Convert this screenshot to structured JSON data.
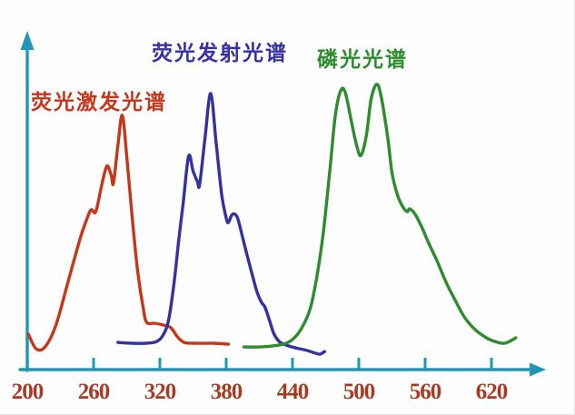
{
  "chart_data": {
    "type": "line",
    "title": "",
    "xlabel": "",
    "ylabel": "",
    "x_ticks": [
      200,
      260,
      320,
      380,
      440,
      500,
      560,
      620
    ],
    "x_range": [
      200,
      660
    ],
    "y_range": [
      0,
      100
    ],
    "grid": false,
    "legend_position": "labels-above-curves",
    "series": [
      {
        "name": "荧光激发光谱",
        "color": "#c5371a",
        "points": [
          [
            201,
            12.4
          ],
          [
            208,
            7.3
          ],
          [
            216,
            7.9
          ],
          [
            226,
            15.6
          ],
          [
            237,
            30.8
          ],
          [
            248,
            46.0
          ],
          [
            255,
            53.7
          ],
          [
            258,
            55.9
          ],
          [
            262,
            55.2
          ],
          [
            267,
            63.8
          ],
          [
            272,
            71.1
          ],
          [
            276,
            67.9
          ],
          [
            278,
            65.1
          ],
          [
            282,
            78.4
          ],
          [
            286,
            88.9
          ],
          [
            290,
            74.6
          ],
          [
            295,
            53.0
          ],
          [
            300,
            34.0
          ],
          [
            305,
            21.3
          ],
          [
            308,
            16.5
          ],
          [
            315,
            16.2
          ],
          [
            323,
            15.6
          ],
          [
            330,
            14.6
          ],
          [
            336,
            11.4
          ],
          [
            342,
            9.5
          ],
          [
            352,
            9.2
          ],
          [
            369,
            9.2
          ],
          [
            382,
            8.9
          ]
        ]
      },
      {
        "name": "荧光发射光谱",
        "color": "#3531a3",
        "points": [
          [
            282,
            9.5
          ],
          [
            295,
            9.2
          ],
          [
            307,
            9.2
          ],
          [
            317,
            9.8
          ],
          [
            323,
            12.1
          ],
          [
            328,
            17.5
          ],
          [
            333,
            30.8
          ],
          [
            337,
            45.1
          ],
          [
            341,
            57.8
          ],
          [
            346,
            74.6
          ],
          [
            350,
            69.5
          ],
          [
            354,
            65.7
          ],
          [
            356,
            64.8
          ],
          [
            361,
            81.6
          ],
          [
            366,
            96.5
          ],
          [
            371,
            79.0
          ],
          [
            376,
            61.0
          ],
          [
            380,
            53.0
          ],
          [
            382,
            51.4
          ],
          [
            385,
            54.0
          ],
          [
            388,
            54.3
          ],
          [
            391,
            52.1
          ],
          [
            397,
            42.9
          ],
          [
            403,
            34.0
          ],
          [
            408,
            27.0
          ],
          [
            412,
            23.5
          ],
          [
            415,
            21.9
          ],
          [
            419,
            17.5
          ],
          [
            423,
            12.7
          ],
          [
            428,
            9.8
          ],
          [
            434,
            8.6
          ],
          [
            443,
            7.6
          ],
          [
            453,
            6.7
          ],
          [
            461,
            5.7
          ],
          [
            465,
            5.4
          ],
          [
            469,
            6.3
          ]
        ]
      },
      {
        "name": "磷光光谱",
        "color": "#2e8b2e",
        "points": [
          [
            396,
            7.9
          ],
          [
            410,
            7.9
          ],
          [
            422,
            8.3
          ],
          [
            432,
            8.9
          ],
          [
            440,
            10.5
          ],
          [
            448,
            14.3
          ],
          [
            456,
            21.3
          ],
          [
            462,
            32.4
          ],
          [
            468,
            48.3
          ],
          [
            474,
            70.5
          ],
          [
            479,
            89.5
          ],
          [
            484,
            97.8
          ],
          [
            488,
            96.5
          ],
          [
            493,
            87.3
          ],
          [
            498,
            78.4
          ],
          [
            502,
            74.9
          ],
          [
            507,
            82.2
          ],
          [
            511,
            94.3
          ],
          [
            516,
            99.7
          ],
          [
            520,
            95.9
          ],
          [
            526,
            81.6
          ],
          [
            530,
            68.9
          ],
          [
            535,
            61.0
          ],
          [
            540,
            56.8
          ],
          [
            544,
            55.2
          ],
          [
            546,
            56.2
          ],
          [
            551,
            54.3
          ],
          [
            557,
            49.8
          ],
          [
            563,
            44.4
          ],
          [
            571,
            37.8
          ],
          [
            579,
            30.5
          ],
          [
            587,
            24.4
          ],
          [
            596,
            18.1
          ],
          [
            606,
            13.7
          ],
          [
            617,
            10.8
          ],
          [
            626,
            9.5
          ],
          [
            632,
            9.2
          ],
          [
            638,
            10.2
          ],
          [
            642,
            11.1
          ]
        ]
      }
    ]
  },
  "labels": {
    "excitation": "荧光激发光谱",
    "emission": "荧光发射光谱",
    "phosphorescence": "磷光光谱"
  },
  "colors": {
    "background": "#fdfdfd",
    "axis": "#1f97b5",
    "tick_label": "#a93a22",
    "excitation": "#c5371a",
    "emission": "#3531a3",
    "phosphorescence": "#2e8b2e"
  }
}
